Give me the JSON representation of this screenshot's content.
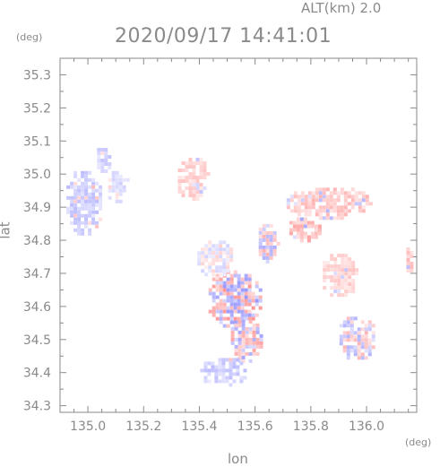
{
  "header": {
    "alt_label": "ALT(km)  2.0",
    "timestamp": "2020/09/17 14:41:01"
  },
  "chart_data": {
    "type": "heatmap",
    "title": "2020/09/17 14:41:01",
    "subtitle": "ALT(km)  2.0",
    "xlabel": "lon",
    "ylabel": "lat",
    "x_unit": "(deg)",
    "y_unit": "(deg)",
    "xlim": [
      134.9,
      136.18
    ],
    "ylim": [
      34.28,
      35.35
    ],
    "x_ticks": [
      135.0,
      135.2,
      135.4,
      135.6,
      135.8,
      136.0
    ],
    "x_tick_labels": [
      "135.0",
      "135.2",
      "135.4",
      "135.6",
      "135.8",
      "136.0"
    ],
    "y_ticks": [
      34.3,
      34.4,
      34.5,
      34.6,
      34.7,
      34.8,
      34.9,
      35.0,
      35.1,
      35.2,
      35.3
    ],
    "y_tick_labels": [
      "34.3",
      "34.4",
      "34.5",
      "34.6",
      "34.7",
      "34.8",
      "34.9",
      "35.0",
      "35.1",
      "35.2",
      "35.3"
    ],
    "grid": false,
    "colors": {
      "negative": "#8c8cf0",
      "positive": "#f08c8c",
      "axis": "#8a8a8a"
    },
    "regions": [
      {
        "lon": 134.98,
        "lat": 34.92,
        "rlon": 0.07,
        "rlat": 0.1,
        "sign": -1,
        "strength": 0.45
      },
      {
        "lon": 135.05,
        "lat": 35.05,
        "rlon": 0.03,
        "rlat": 0.04,
        "sign": -1,
        "strength": 0.4
      },
      {
        "lon": 135.1,
        "lat": 34.97,
        "rlon": 0.04,
        "rlat": 0.05,
        "sign": -1,
        "strength": 0.35
      },
      {
        "lon": 135.37,
        "lat": 34.99,
        "rlon": 0.06,
        "rlat": 0.07,
        "sign": 1,
        "strength": 0.4
      },
      {
        "lon": 135.86,
        "lat": 34.92,
        "rlon": 0.16,
        "rlat": 0.05,
        "sign": 1,
        "strength": 0.5
      },
      {
        "lon": 135.77,
        "lat": 34.84,
        "rlon": 0.06,
        "rlat": 0.04,
        "sign": 1,
        "strength": 0.6
      },
      {
        "lon": 135.9,
        "lat": 34.7,
        "rlon": 0.07,
        "rlat": 0.07,
        "sign": 1,
        "strength": 0.4
      },
      {
        "lon": 136.16,
        "lat": 34.75,
        "rlon": 0.03,
        "rlat": 0.05,
        "sign": 1,
        "strength": 0.5
      },
      {
        "lon": 135.52,
        "lat": 34.63,
        "rlon": 0.1,
        "rlat": 0.09,
        "sign": 0,
        "strength": 0.7
      },
      {
        "lon": 135.56,
        "lat": 34.5,
        "rlon": 0.06,
        "rlat": 0.07,
        "sign": 0,
        "strength": 0.6
      },
      {
        "lon": 135.48,
        "lat": 34.41,
        "rlon": 0.09,
        "rlat": 0.045,
        "sign": -1,
        "strength": 0.45
      },
      {
        "lon": 135.96,
        "lat": 34.51,
        "rlon": 0.07,
        "rlat": 0.07,
        "sign": 0,
        "strength": 0.5
      },
      {
        "lon": 135.64,
        "lat": 34.8,
        "rlon": 0.04,
        "rlat": 0.06,
        "sign": 0,
        "strength": 0.55
      },
      {
        "lon": 135.45,
        "lat": 34.75,
        "rlon": 0.07,
        "rlat": 0.06,
        "sign": 0,
        "strength": 0.3
      }
    ]
  }
}
